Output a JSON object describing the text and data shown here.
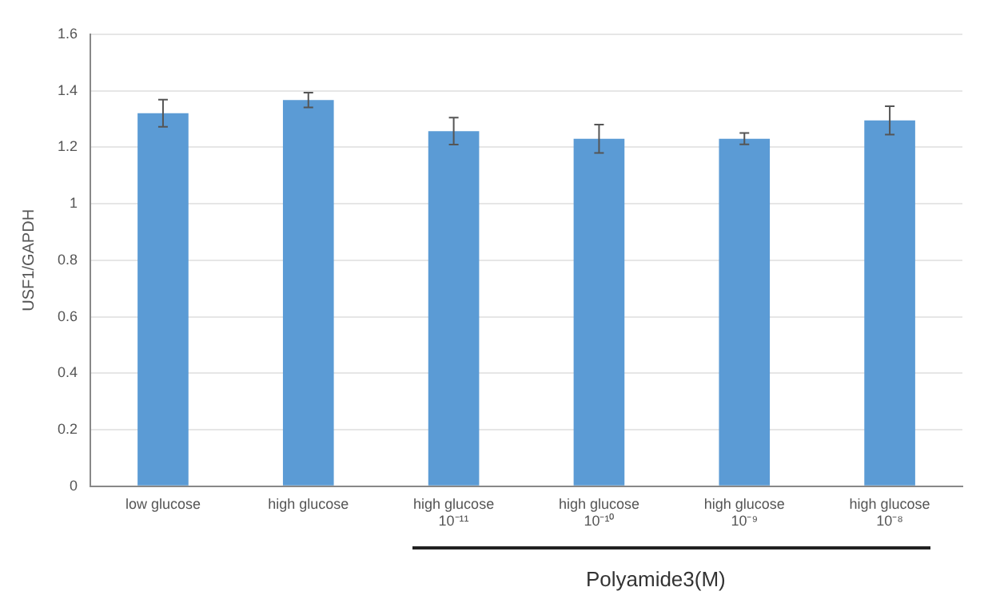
{
  "chart_data": {
    "type": "bar",
    "ylabel": "USF1/GAPDH",
    "categories": [
      "low glucose",
      "high glucose",
      "high glucose\n10⁻¹¹",
      "high glucose\n10⁻¹⁰",
      "high glucose\n10⁻⁹",
      "high glucose\n10⁻⁸"
    ],
    "values": [
      1.32,
      1.367,
      1.257,
      1.23,
      1.23,
      1.295
    ],
    "errors": [
      0.048,
      0.026,
      0.048,
      0.05,
      0.02,
      0.05
    ],
    "color": "#5b9bd5",
    "ylim": [
      0,
      1.6
    ],
    "yticks": [
      0,
      0.2,
      0.4,
      0.6,
      0.8,
      1,
      1.2,
      1.4,
      1.6
    ],
    "grid": "y",
    "annotations": [
      "Polyamide3(M)"
    ]
  }
}
